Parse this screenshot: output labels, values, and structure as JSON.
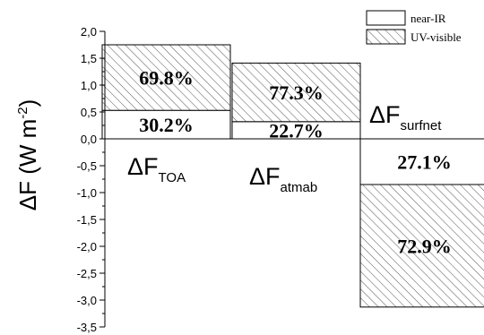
{
  "chart_data": {
    "type": "bar",
    "stacked": true,
    "categories": [
      {
        "main": "ΔF",
        "sub": "TOA"
      },
      {
        "main": "ΔF",
        "sub": "atmab"
      },
      {
        "main": "ΔF",
        "sub": "surfnet"
      }
    ],
    "series": [
      {
        "name": "near-IR",
        "pattern": "solid",
        "values": [
          0.53,
          0.32,
          -0.85
        ],
        "labels": [
          "30.2%",
          "22.7%",
          "27.1%"
        ]
      },
      {
        "name": "UV-visible",
        "pattern": "hatched",
        "values": [
          1.22,
          1.09,
          -2.28
        ],
        "labels": [
          "69.8%",
          "77.3%",
          "72.9%"
        ]
      }
    ],
    "ylabel": {
      "main": "ΔF (W m",
      "sup": "-2",
      "tail": ")"
    },
    "ylim": [
      -3.5,
      2.0
    ],
    "yticks": [
      "-3,5",
      "-3,0",
      "-2,5",
      "-2,0",
      "-1,5",
      "-1,0",
      "-0,5",
      "0,0",
      "0,5",
      "1,0",
      "1,5",
      "2,0"
    ],
    "ytick_values": [
      -3.5,
      -3.0,
      -2.5,
      -2.0,
      -1.5,
      -1.0,
      -0.5,
      0.0,
      0.5,
      1.0,
      1.5,
      2.0
    ],
    "legend_position": "top-right",
    "grid": false,
    "colors": {
      "bar_fill": "#ffffff",
      "stroke": "#000000",
      "hatch": "#555555"
    }
  }
}
